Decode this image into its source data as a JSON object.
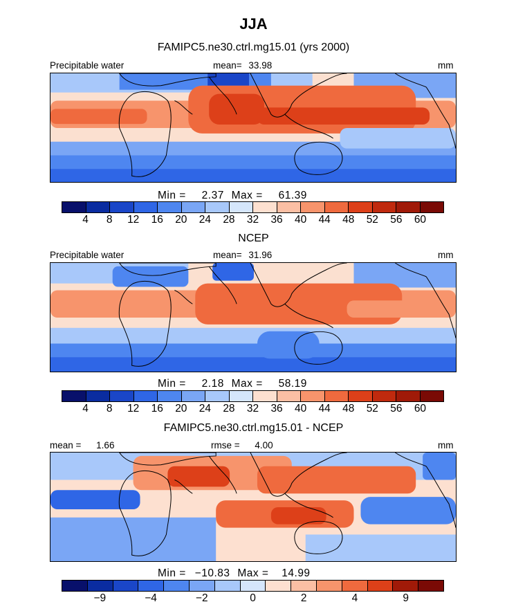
{
  "header": {
    "season": "JJA",
    "model_title": "FAMIPC5.ne30.ctrl.mg15.01 (yrs 2000)",
    "obs_title": "NCEP",
    "diff_title": "FAMIPC5.ne30.ctrl.mg15.01 - NCEP"
  },
  "colors": {
    "precip_scale": [
      "#08106b",
      "#0a2ca0",
      "#1a46c8",
      "#2f66e6",
      "#4e86f0",
      "#7aa6f5",
      "#a8c8fa",
      "#d5e6fb",
      "#fde0d0",
      "#fbbfa4",
      "#f7946c",
      "#ef6a3e",
      "#dd4019",
      "#c02a0e",
      "#a01a08",
      "#7a0a05"
    ],
    "diff_scale": [
      "#08106b",
      "#0a2ca0",
      "#1a46c8",
      "#2f66e6",
      "#4e86f0",
      "#7aa6f5",
      "#a8c8fa",
      "#d5e6fb",
      "#fde0d0",
      "#fbbfa4",
      "#f7946c",
      "#ef6a3e",
      "#dd4019",
      "#a01a08",
      "#7a0a05"
    ]
  },
  "chart_data": [
    {
      "type": "heatmap",
      "title": "FAMIPC5.ne30.ctrl.mg15.01 (yrs 2000)",
      "variable": "Precipitable water",
      "mean_label": "mean=",
      "mean": "33.98",
      "units": "mm",
      "min_label": "Min =",
      "min": "2.37",
      "max_label": "Max =",
      "max": "61.39",
      "colorbar_ticks": [
        "4",
        "8",
        "12",
        "16",
        "20",
        "24",
        "28",
        "32",
        "36",
        "40",
        "44",
        "48",
        "52",
        "56",
        "60"
      ]
    },
    {
      "type": "heatmap",
      "title": "NCEP",
      "variable": "Precipitable water",
      "mean_label": "mean=",
      "mean": "31.96",
      "units": "mm",
      "min_label": "Min =",
      "min": "2.18",
      "max_label": "Max =",
      "max": "58.19",
      "colorbar_ticks": [
        "4",
        "8",
        "12",
        "16",
        "20",
        "24",
        "28",
        "32",
        "36",
        "40",
        "44",
        "48",
        "52",
        "56",
        "60"
      ]
    },
    {
      "type": "heatmap",
      "title": "FAMIPC5.ne30.ctrl.mg15.01 - NCEP",
      "mean_label": "mean =",
      "mean": "1.66",
      "rmse_label": "rmse =",
      "rmse": "4.00",
      "units": "mm",
      "min_label": "Min =",
      "min": "−10.83",
      "max_label": "Max =",
      "max": "14.99",
      "colorbar_ticks": [
        "−9",
        "−4",
        "−2",
        "0",
        "2",
        "4",
        "9"
      ]
    }
  ]
}
